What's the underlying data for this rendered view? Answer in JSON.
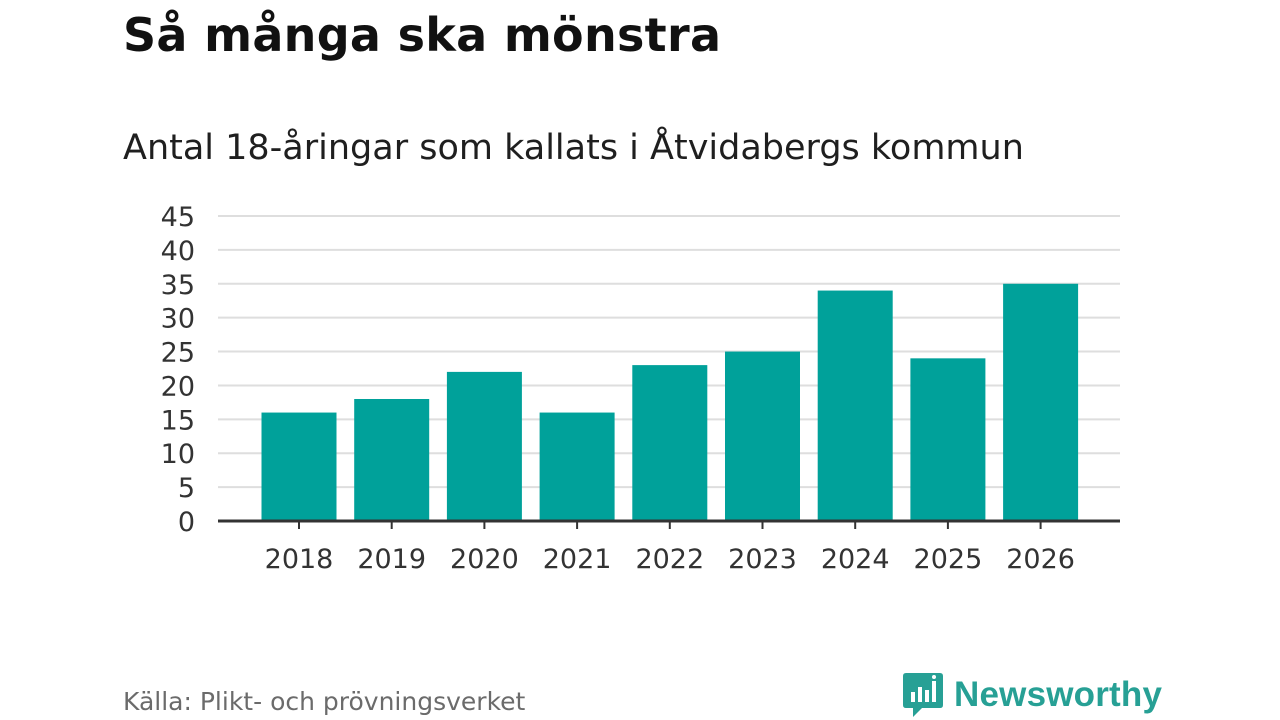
{
  "header": {
    "title": "Så många ska mönstra",
    "subtitle": "Antal 18-åringar som kallats i Åtvidabergs kommun"
  },
  "footer": {
    "source": "Källa: Plikt- och prövningsverket",
    "brand": "Newsworthy",
    "brand_icon": "newsworthy-logo-icon"
  },
  "colors": {
    "bar": "#00a19a",
    "grid": "#dedede",
    "axis": "#333333",
    "brand": "#27a095"
  },
  "chart_data": {
    "type": "bar",
    "title": "Så många ska mönstra",
    "subtitle": "Antal 18-åringar som kallats i Åtvidabergs kommun",
    "xlabel": "",
    "ylabel": "",
    "categories": [
      "2018",
      "2019",
      "2020",
      "2021",
      "2022",
      "2023",
      "2024",
      "2025",
      "2026"
    ],
    "values": [
      16,
      18,
      22,
      16,
      23,
      25,
      34,
      24,
      35
    ],
    "ylim": [
      0,
      45
    ],
    "yticks": [
      0,
      5,
      10,
      15,
      20,
      25,
      30,
      35,
      40,
      45
    ],
    "grid": true,
    "legend": "none"
  }
}
